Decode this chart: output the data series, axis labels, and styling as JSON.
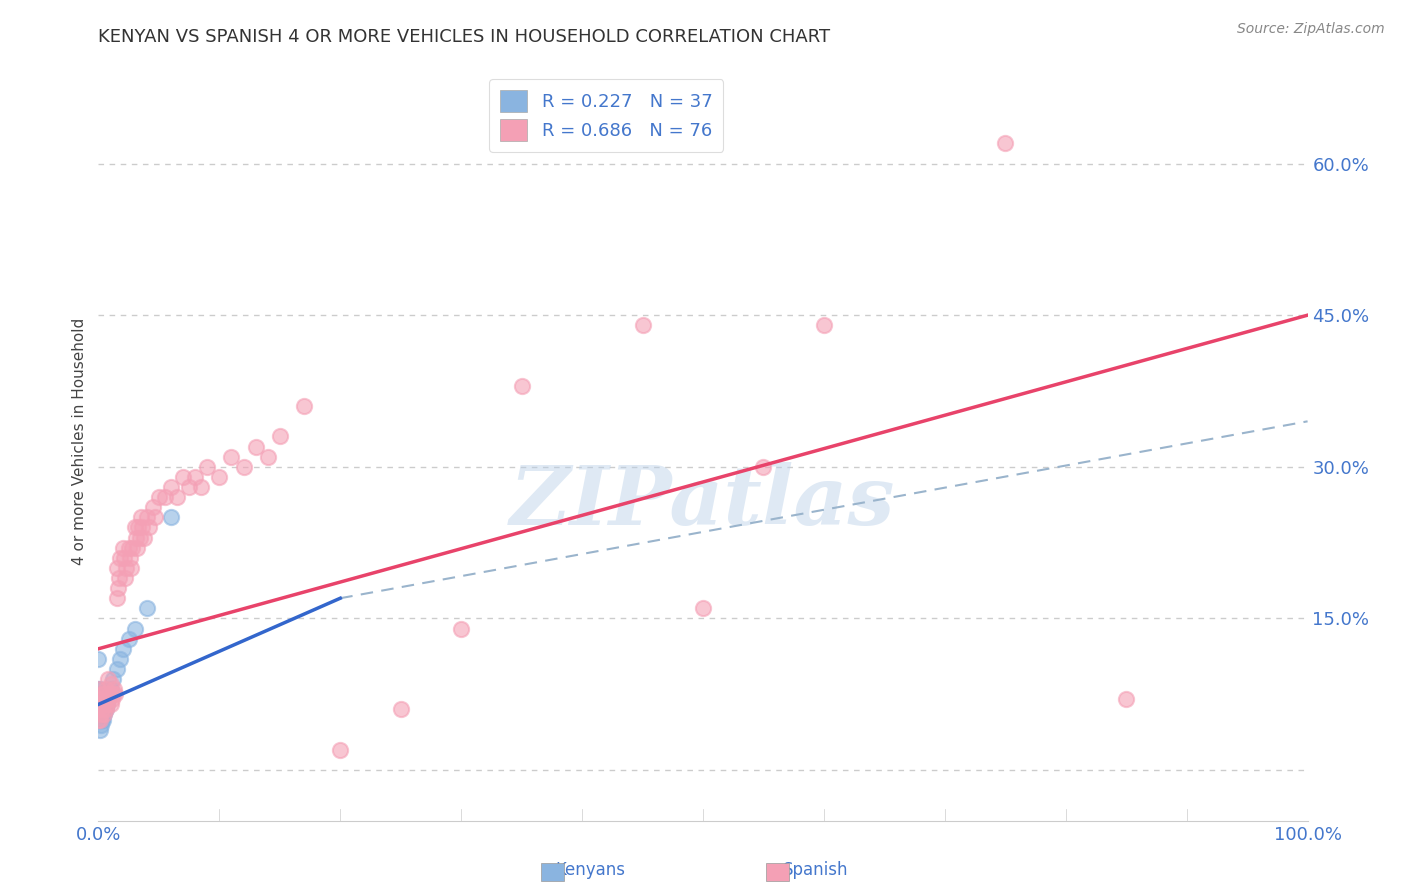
{
  "title": "KENYAN VS SPANISH 4 OR MORE VEHICLES IN HOUSEHOLD CORRELATION CHART",
  "source_text": "Source: ZipAtlas.com",
  "ylabel": "4 or more Vehicles in Household",
  "xlim": [
    0.0,
    1.0
  ],
  "ylim": [
    -0.05,
    0.7
  ],
  "x_ticks": [
    0.0,
    0.1,
    0.2,
    0.3,
    0.4,
    0.5,
    0.6,
    0.7,
    0.8,
    0.9,
    1.0
  ],
  "x_tick_labels": [
    "0.0%",
    "",
    "",
    "",
    "",
    "",
    "",
    "",
    "",
    "",
    "100.0%"
  ],
  "y_ticks": [
    0.0,
    0.15,
    0.3,
    0.45,
    0.6
  ],
  "y_tick_labels": [
    "",
    "15.0%",
    "30.0%",
    "45.0%",
    "60.0%"
  ],
  "kenyan_R": 0.227,
  "kenyan_N": 37,
  "spanish_R": 0.686,
  "spanish_N": 76,
  "kenyan_color": "#8ab4e0",
  "spanish_color": "#f4a0b5",
  "kenyan_line_color": "#3366cc",
  "spanish_line_color": "#e8436a",
  "dashed_line_color": "#9ab4cc",
  "background_color": "#ffffff",
  "watermark_text": "ZIPatlas",
  "kenyan_x": [
    0.0,
    0.0,
    0.0,
    0.0,
    0.0,
    0.001,
    0.001,
    0.001,
    0.001,
    0.001,
    0.001,
    0.001,
    0.001,
    0.002,
    0.002,
    0.002,
    0.002,
    0.002,
    0.003,
    0.003,
    0.003,
    0.004,
    0.004,
    0.004,
    0.005,
    0.006,
    0.007,
    0.008,
    0.01,
    0.012,
    0.015,
    0.018,
    0.02,
    0.025,
    0.03,
    0.04,
    0.06
  ],
  "kenyan_y": [
    0.05,
    0.055,
    0.06,
    0.08,
    0.11,
    0.04,
    0.05,
    0.055,
    0.06,
    0.065,
    0.07,
    0.075,
    0.08,
    0.045,
    0.05,
    0.055,
    0.06,
    0.065,
    0.05,
    0.055,
    0.06,
    0.05,
    0.055,
    0.06,
    0.055,
    0.06,
    0.065,
    0.07,
    0.08,
    0.09,
    0.1,
    0.11,
    0.12,
    0.13,
    0.14,
    0.16,
    0.25
  ],
  "spanish_x": [
    0.0,
    0.0,
    0.0,
    0.0,
    0.001,
    0.001,
    0.002,
    0.002,
    0.003,
    0.003,
    0.004,
    0.005,
    0.005,
    0.006,
    0.006,
    0.007,
    0.008,
    0.008,
    0.009,
    0.01,
    0.01,
    0.011,
    0.012,
    0.013,
    0.014,
    0.015,
    0.015,
    0.016,
    0.017,
    0.018,
    0.02,
    0.021,
    0.022,
    0.023,
    0.025,
    0.026,
    0.027,
    0.028,
    0.03,
    0.031,
    0.032,
    0.033,
    0.034,
    0.035,
    0.036,
    0.038,
    0.04,
    0.042,
    0.045,
    0.047,
    0.05,
    0.055,
    0.06,
    0.065,
    0.07,
    0.075,
    0.08,
    0.085,
    0.09,
    0.1,
    0.11,
    0.12,
    0.13,
    0.14,
    0.15,
    0.17,
    0.2,
    0.25,
    0.3,
    0.35,
    0.45,
    0.5,
    0.55,
    0.6,
    0.75,
    0.85
  ],
  "spanish_y": [
    0.05,
    0.06,
    0.07,
    0.08,
    0.05,
    0.065,
    0.055,
    0.07,
    0.06,
    0.075,
    0.065,
    0.055,
    0.075,
    0.06,
    0.08,
    0.065,
    0.07,
    0.09,
    0.075,
    0.065,
    0.085,
    0.07,
    0.075,
    0.08,
    0.075,
    0.17,
    0.2,
    0.18,
    0.19,
    0.21,
    0.22,
    0.21,
    0.19,
    0.2,
    0.22,
    0.21,
    0.2,
    0.22,
    0.24,
    0.23,
    0.22,
    0.24,
    0.23,
    0.25,
    0.24,
    0.23,
    0.25,
    0.24,
    0.26,
    0.25,
    0.27,
    0.27,
    0.28,
    0.27,
    0.29,
    0.28,
    0.29,
    0.28,
    0.3,
    0.29,
    0.31,
    0.3,
    0.32,
    0.31,
    0.33,
    0.36,
    0.02,
    0.06,
    0.14,
    0.38,
    0.44,
    0.16,
    0.3,
    0.44,
    0.62,
    0.07
  ],
  "kenyan_line_x": [
    0.0,
    0.2
  ],
  "kenyan_line_y": [
    0.065,
    0.17
  ],
  "dashed_line_x": [
    0.2,
    1.0
  ],
  "dashed_line_y": [
    0.17,
    0.345
  ],
  "spanish_line_x": [
    0.0,
    1.0
  ],
  "spanish_line_y": [
    0.12,
    0.45
  ]
}
